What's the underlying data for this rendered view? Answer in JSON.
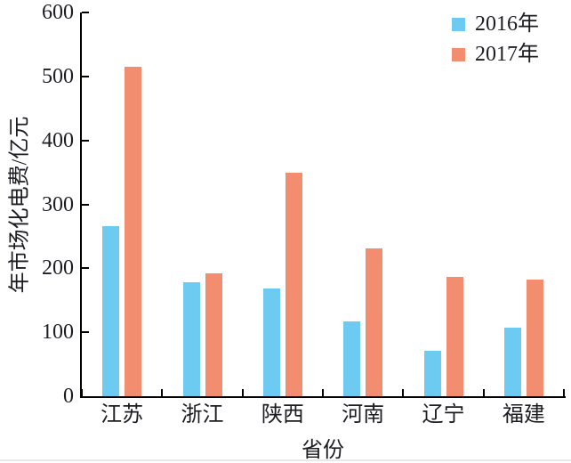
{
  "chart_data": {
    "type": "bar",
    "title": "",
    "xlabel": "省份",
    "ylabel": "年市场化电费/亿元",
    "categories": [
      "江苏",
      "浙江",
      "陕西",
      "河南",
      "辽宁",
      "福建"
    ],
    "series": [
      {
        "name": "2016年",
        "color": "#6DCBF2",
        "values": [
          266,
          178,
          169,
          117,
          71,
          107
        ]
      },
      {
        "name": "2017年",
        "color": "#F28D6F",
        "values": [
          515,
          192,
          350,
          231,
          186,
          182
        ]
      }
    ],
    "ylim": [
      0,
      600
    ],
    "yticks": [
      0,
      100,
      200,
      300,
      400,
      500,
      600
    ],
    "grid": false,
    "legend_position": "top-right",
    "axis_color": "#000000",
    "text_color": "#1c1c22"
  }
}
